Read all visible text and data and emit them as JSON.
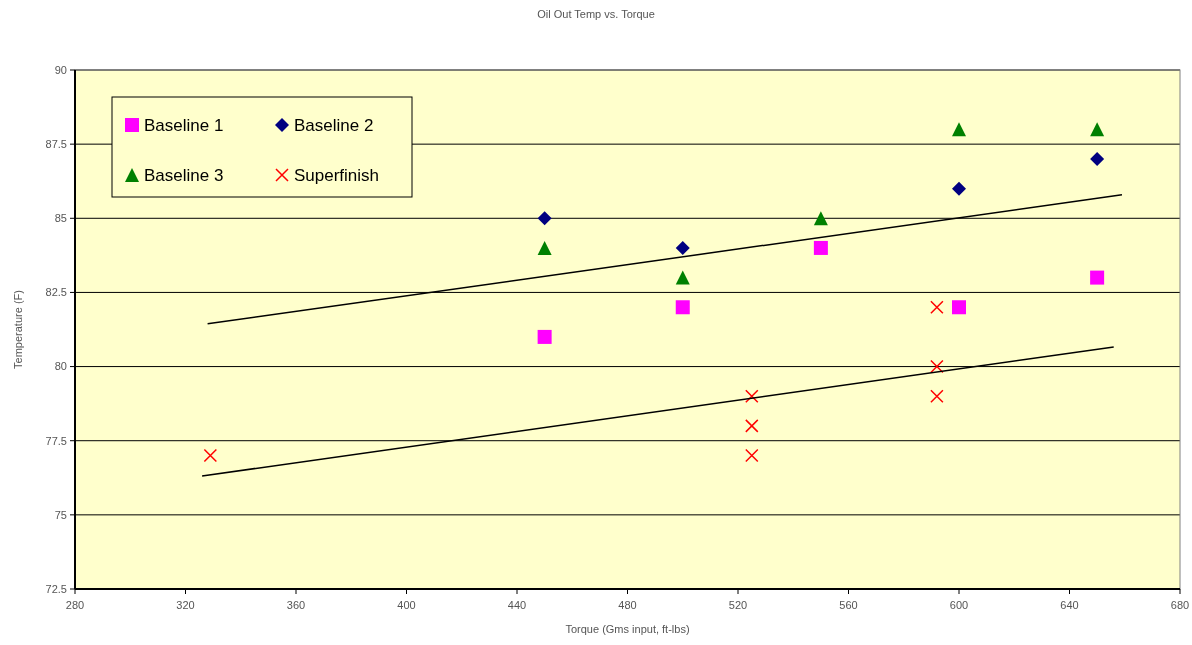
{
  "chart_data": {
    "type": "scatter",
    "title": "Oil Out Temp vs. Torque",
    "xlabel": "Torque (Gms input, ft-lbs)",
    "ylabel": "Temperature (F)",
    "xlim": [
      280,
      680
    ],
    "xticks": [
      280,
      320,
      360,
      400,
      440,
      480,
      520,
      560,
      600,
      640,
      680
    ],
    "ylim": [
      72.5,
      90
    ],
    "yticks": [
      72.5,
      75,
      77.5,
      80,
      82.5,
      85,
      87.5,
      90
    ],
    "grid": "y",
    "legend": "top left",
    "series": [
      {
        "name": "Baseline 1",
        "color": "#ff00ff",
        "marker": "square",
        "x": [
          450,
          500,
          550,
          600,
          650
        ],
        "values": [
          81,
          82,
          84,
          82,
          83
        ]
      },
      {
        "name": "Baseline 2",
        "color": "#000080",
        "marker": "diamond",
        "x": [
          450,
          500,
          600,
          650
        ],
        "values": [
          85,
          84,
          86,
          87
        ]
      },
      {
        "name": "Baseline 3",
        "color": "#008000",
        "marker": "triangle",
        "x": [
          450,
          500,
          550,
          600,
          650
        ],
        "values": [
          84,
          83,
          85,
          88,
          88
        ]
      },
      {
        "name": "Superfinish",
        "color": "#ff0000",
        "marker": "cross",
        "x": [
          329,
          525,
          525,
          525,
          592,
          592,
          592
        ],
        "values": [
          77,
          79,
          78,
          77,
          82,
          80,
          79
        ]
      },
      {
        "type": "line",
        "color": "#000000",
        "marker": "none",
        "x": [
          328,
          659
        ],
        "values": [
          81.44,
          85.79
        ]
      },
      {
        "type": "line",
        "color": "#000000",
        "marker": "none",
        "x": [
          326,
          656
        ],
        "values": [
          76.31,
          80.66
        ]
      }
    ]
  }
}
